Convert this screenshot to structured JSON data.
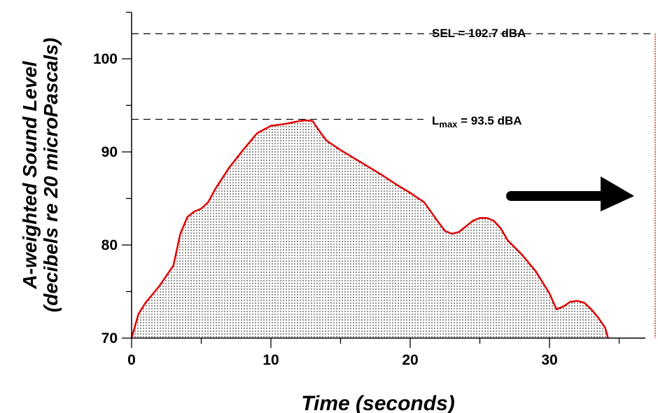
{
  "chart_data": {
    "type": "area",
    "xlabel": "Time (seconds)",
    "ylabel_line1": "A-weighted Sound Level",
    "ylabel_line2": "(decibels re 20 microPascals)",
    "xlim": [
      0,
      37
    ],
    "ylim": [
      70,
      105
    ],
    "x_ticks": [
      0,
      10,
      20,
      30
    ],
    "y_ticks": [
      70,
      80,
      90,
      100
    ],
    "grid": false,
    "legend": "none",
    "series": [
      {
        "x": [
          0,
          0.5,
          1,
          2,
          3,
          3.5,
          4,
          4.5,
          5,
          5.5,
          6,
          7,
          8,
          9,
          10,
          11,
          12,
          12.5,
          13,
          13.5,
          14,
          15,
          16,
          17,
          18,
          19,
          20,
          21,
          22,
          22.5,
          23,
          23.5,
          24,
          24.5,
          25,
          25.5,
          26,
          26.5,
          27,
          28,
          29,
          30,
          30.5,
          31,
          31.5,
          32,
          32.5,
          33,
          33.5,
          34,
          34.2
        ],
        "y": [
          70,
          72.6,
          73.8,
          75.6,
          77.8,
          81.2,
          83,
          83.6,
          83.9,
          84.6,
          86,
          88.3,
          90.2,
          92,
          92.8,
          93,
          93.3,
          93.4,
          93.3,
          92.2,
          91.2,
          90.2,
          89.3,
          88.4,
          87.5,
          86.5,
          85.6,
          84.6,
          82.5,
          81.5,
          81.2,
          81.4,
          82,
          82.6,
          82.9,
          82.9,
          82.6,
          81.8,
          80.5,
          79,
          77.2,
          74.8,
          73.1,
          73.4,
          73.9,
          74,
          73.8,
          73.1,
          72.2,
          71.1,
          70
        ]
      }
    ],
    "annotations": {
      "sel": {
        "y": 102.7,
        "label": "SEL = 102.7 dBA"
      },
      "lmax": {
        "y": 93.5,
        "label_main": "L",
        "label_sub": "max",
        "label_value": " = 93.5 dBA"
      }
    },
    "colors": {
      "curve": "#e00000",
      "fill_dots": "#000000",
      "arrow": "#000000",
      "sel_bar": "#e00000"
    }
  }
}
